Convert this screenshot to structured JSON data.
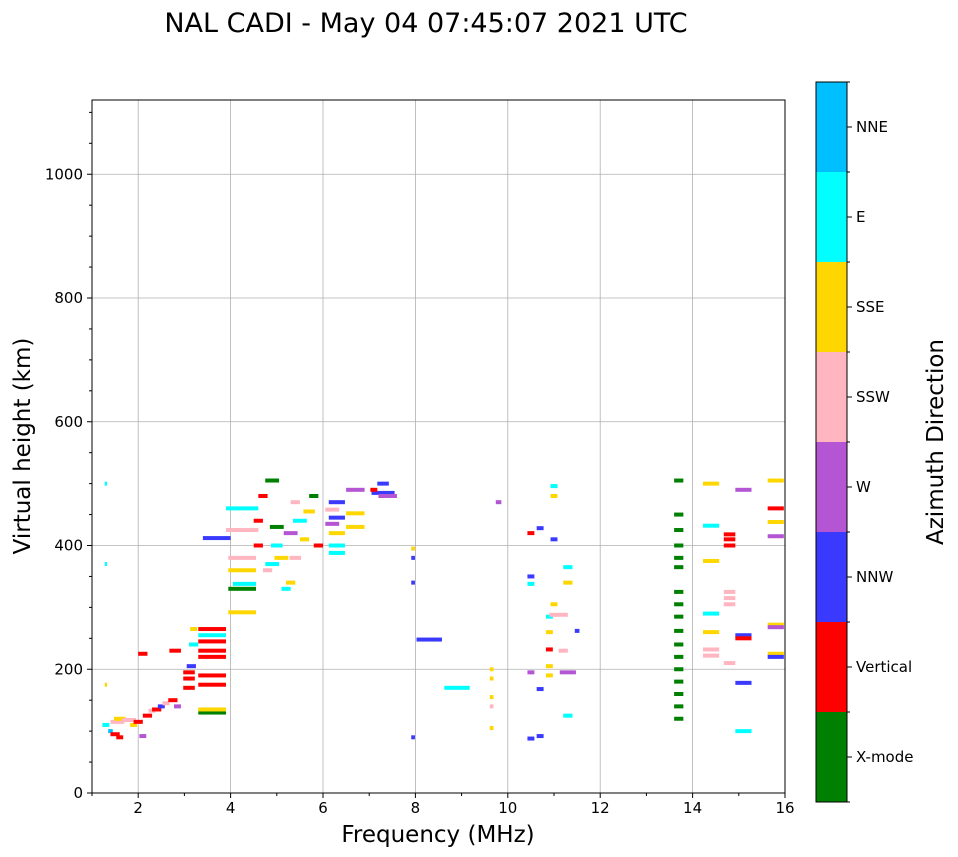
{
  "chart_data": {
    "type": "scatter",
    "title": "NAL CADI - May 04 07:45:07 2021 UTC",
    "xlabel": "Frequency (MHz)",
    "ylabel": "Virtual height (km)",
    "xlim": [
      1,
      16
    ],
    "ylim": [
      0,
      1120
    ],
    "grid": true,
    "x_ticks": [
      {
        "value": 2,
        "label": "2"
      },
      {
        "value": 4,
        "label": "4"
      },
      {
        "value": 6,
        "label": "6"
      },
      {
        "value": 8,
        "label": "8"
      },
      {
        "value": 10,
        "label": "10"
      },
      {
        "value": 12,
        "label": "12"
      },
      {
        "value": 14,
        "label": "14"
      },
      {
        "value": 16,
        "label": "16"
      }
    ],
    "y_ticks": [
      {
        "value": 0,
        "label": "0"
      },
      {
        "value": 200,
        "label": "200"
      },
      {
        "value": 400,
        "label": "400"
      },
      {
        "value": 600,
        "label": "600"
      },
      {
        "value": 800,
        "label": "800"
      },
      {
        "value": 1000,
        "label": "1000"
      }
    ],
    "colorbar": {
      "label": "Azimuth Direction",
      "categories": [
        {
          "name": "X-mode",
          "color": "#008000"
        },
        {
          "name": "Vertical",
          "color": "#ff0000"
        },
        {
          "name": "NNW",
          "color": "#3a3aff"
        },
        {
          "name": "W",
          "color": "#b455d4"
        },
        {
          "name": "SSW",
          "color": "#ffb6c1"
        },
        {
          "name": "SSE",
          "color": "#ffd700"
        },
        {
          "name": "E",
          "color": "#00ffff"
        },
        {
          "name": "NNE",
          "color": "#00bfff"
        }
      ]
    },
    "echoes": [
      {
        "f": 1.3,
        "h": 110,
        "w": 0.15,
        "dir": "E"
      },
      {
        "f": 1.4,
        "h": 100,
        "w": 0.1,
        "dir": "NNE"
      },
      {
        "f": 1.5,
        "h": 95,
        "w": 0.2,
        "dir": "Vertical"
      },
      {
        "f": 1.55,
        "h": 115,
        "w": 0.3,
        "dir": "SSW"
      },
      {
        "f": 1.6,
        "h": 120,
        "w": 0.25,
        "dir": "SSE"
      },
      {
        "f": 1.8,
        "h": 118,
        "w": 0.3,
        "dir": "SSW"
      },
      {
        "f": 1.9,
        "h": 110,
        "w": 0.15,
        "dir": "SSE"
      },
      {
        "f": 2.0,
        "h": 115,
        "w": 0.2,
        "dir": "Vertical"
      },
      {
        "f": 2.2,
        "h": 125,
        "w": 0.2,
        "dir": "Vertical"
      },
      {
        "f": 2.3,
        "h": 133,
        "w": 0.15,
        "dir": "SSW"
      },
      {
        "f": 2.4,
        "h": 135,
        "w": 0.2,
        "dir": "Vertical"
      },
      {
        "f": 2.5,
        "h": 140,
        "w": 0.15,
        "dir": "NNW"
      },
      {
        "f": 2.6,
        "h": 145,
        "w": 0.15,
        "dir": "SSW"
      },
      {
        "f": 2.75,
        "h": 150,
        "w": 0.2,
        "dir": "Vertical"
      },
      {
        "f": 2.85,
        "h": 140,
        "w": 0.15,
        "dir": "W"
      },
      {
        "f": 2.1,
        "h": 225,
        "w": 0.2,
        "dir": "Vertical"
      },
      {
        "f": 2.8,
        "h": 230,
        "w": 0.25,
        "dir": "Vertical"
      },
      {
        "f": 2.1,
        "h": 92,
        "w": 0.15,
        "dir": "W"
      },
      {
        "f": 1.6,
        "h": 90,
        "w": 0.15,
        "dir": "Vertical"
      },
      {
        "f": 3.1,
        "h": 170,
        "w": 0.25,
        "dir": "Vertical"
      },
      {
        "f": 3.1,
        "h": 185,
        "w": 0.25,
        "dir": "Vertical"
      },
      {
        "f": 3.1,
        "h": 195,
        "w": 0.25,
        "dir": "Vertical"
      },
      {
        "f": 3.15,
        "h": 205,
        "w": 0.2,
        "dir": "NNW"
      },
      {
        "f": 3.2,
        "h": 240,
        "w": 0.2,
        "dir": "E"
      },
      {
        "f": 3.2,
        "h": 265,
        "w": 0.15,
        "dir": "SSE"
      },
      {
        "f": 3.6,
        "h": 175,
        "w": 0.6,
        "dir": "Vertical"
      },
      {
        "f": 3.6,
        "h": 190,
        "w": 0.6,
        "dir": "Vertical"
      },
      {
        "f": 3.6,
        "h": 220,
        "w": 0.6,
        "dir": "Vertical"
      },
      {
        "f": 3.6,
        "h": 230,
        "w": 0.6,
        "dir": "Vertical"
      },
      {
        "f": 3.6,
        "h": 245,
        "w": 0.6,
        "dir": "Vertical"
      },
      {
        "f": 3.6,
        "h": 255,
        "w": 0.6,
        "dir": "E"
      },
      {
        "f": 3.6,
        "h": 265,
        "w": 0.6,
        "dir": "Vertical"
      },
      {
        "f": 3.6,
        "h": 130,
        "w": 0.6,
        "dir": "X-mode"
      },
      {
        "f": 3.6,
        "h": 135,
        "w": 0.6,
        "dir": "SSE"
      },
      {
        "f": 3.7,
        "h": 412,
        "w": 0.6,
        "dir": "NNW"
      },
      {
        "f": 4.25,
        "h": 425,
        "w": 0.7,
        "dir": "SSW"
      },
      {
        "f": 4.25,
        "h": 460,
        "w": 0.7,
        "dir": "E"
      },
      {
        "f": 4.25,
        "h": 380,
        "w": 0.6,
        "dir": "SSW"
      },
      {
        "f": 4.25,
        "h": 360,
        "w": 0.6,
        "dir": "SSE"
      },
      {
        "f": 4.25,
        "h": 330,
        "w": 0.6,
        "dir": "X-mode"
      },
      {
        "f": 4.25,
        "h": 292,
        "w": 0.6,
        "dir": "SSE"
      },
      {
        "f": 4.3,
        "h": 338,
        "w": 0.5,
        "dir": "E"
      },
      {
        "f": 4.6,
        "h": 400,
        "w": 0.2,
        "dir": "Vertical"
      },
      {
        "f": 4.6,
        "h": 440,
        "w": 0.2,
        "dir": "Vertical"
      },
      {
        "f": 4.7,
        "h": 480,
        "w": 0.2,
        "dir": "Vertical"
      },
      {
        "f": 4.9,
        "h": 505,
        "w": 0.3,
        "dir": "X-mode"
      },
      {
        "f": 4.9,
        "h": 370,
        "w": 0.3,
        "dir": "E"
      },
      {
        "f": 5.1,
        "h": 380,
        "w": 0.3,
        "dir": "SSE"
      },
      {
        "f": 5.0,
        "h": 400,
        "w": 0.25,
        "dir": "E"
      },
      {
        "f": 5.2,
        "h": 330,
        "w": 0.2,
        "dir": "E"
      },
      {
        "f": 5.3,
        "h": 340,
        "w": 0.2,
        "dir": "SSE"
      },
      {
        "f": 5.3,
        "h": 420,
        "w": 0.3,
        "dir": "W"
      },
      {
        "f": 5.4,
        "h": 470,
        "w": 0.2,
        "dir": "SSW"
      },
      {
        "f": 5.5,
        "h": 440,
        "w": 0.3,
        "dir": "E"
      },
      {
        "f": 5.7,
        "h": 455,
        "w": 0.25,
        "dir": "SSE"
      },
      {
        "f": 5.8,
        "h": 480,
        "w": 0.2,
        "dir": "X-mode"
      },
      {
        "f": 5.6,
        "h": 410,
        "w": 0.2,
        "dir": "SSE"
      },
      {
        "f": 5.9,
        "h": 400,
        "w": 0.2,
        "dir": "Vertical"
      },
      {
        "f": 5.0,
        "h": 430,
        "w": 0.3,
        "dir": "X-mode"
      },
      {
        "f": 4.8,
        "h": 360,
        "w": 0.2,
        "dir": "SSW"
      },
      {
        "f": 5.4,
        "h": 380,
        "w": 0.25,
        "dir": "SSW"
      },
      {
        "f": 6.3,
        "h": 470,
        "w": 0.35,
        "dir": "NNW"
      },
      {
        "f": 6.3,
        "h": 445,
        "w": 0.35,
        "dir": "NNW"
      },
      {
        "f": 6.3,
        "h": 420,
        "w": 0.35,
        "dir": "SSE"
      },
      {
        "f": 6.3,
        "h": 400,
        "w": 0.35,
        "dir": "E"
      },
      {
        "f": 6.3,
        "h": 388,
        "w": 0.35,
        "dir": "E"
      },
      {
        "f": 6.7,
        "h": 490,
        "w": 0.4,
        "dir": "W"
      },
      {
        "f": 6.7,
        "h": 452,
        "w": 0.4,
        "dir": "SSE"
      },
      {
        "f": 6.7,
        "h": 430,
        "w": 0.4,
        "dir": "SSE"
      },
      {
        "f": 6.2,
        "h": 435,
        "w": 0.3,
        "dir": "W"
      },
      {
        "f": 6.2,
        "h": 458,
        "w": 0.3,
        "dir": "SSW"
      },
      {
        "f": 7.3,
        "h": 500,
        "w": 0.25,
        "dir": "NNW"
      },
      {
        "f": 7.3,
        "h": 485,
        "w": 0.5,
        "dir": "NNW"
      },
      {
        "f": 7.4,
        "h": 480,
        "w": 0.4,
        "dir": "W"
      },
      {
        "f": 7.1,
        "h": 490,
        "w": 0.15,
        "dir": "Vertical"
      },
      {
        "f": 7.95,
        "h": 395,
        "w": 0.08,
        "dir": "SSE"
      },
      {
        "f": 7.95,
        "h": 380,
        "w": 0.08,
        "dir": "NNW"
      },
      {
        "f": 7.95,
        "h": 340,
        "w": 0.08,
        "dir": "NNW"
      },
      {
        "f": 7.95,
        "h": 90,
        "w": 0.08,
        "dir": "NNW"
      },
      {
        "f": 8.3,
        "h": 248,
        "w": 0.55,
        "dir": "NNW"
      },
      {
        "f": 8.9,
        "h": 170,
        "w": 0.55,
        "dir": "E"
      },
      {
        "f": 9.8,
        "h": 470,
        "w": 0.12,
        "dir": "W"
      },
      {
        "f": 9.65,
        "h": 200,
        "w": 0.08,
        "dir": "SSE"
      },
      {
        "f": 9.65,
        "h": 185,
        "w": 0.08,
        "dir": "SSE"
      },
      {
        "f": 9.65,
        "h": 140,
        "w": 0.08,
        "dir": "SSW"
      },
      {
        "f": 9.65,
        "h": 155,
        "w": 0.08,
        "dir": "SSE"
      },
      {
        "f": 9.65,
        "h": 105,
        "w": 0.08,
        "dir": "SSE"
      },
      {
        "f": 10.5,
        "h": 420,
        "w": 0.15,
        "dir": "Vertical"
      },
      {
        "f": 10.7,
        "h": 428,
        "w": 0.15,
        "dir": "NNW"
      },
      {
        "f": 10.5,
        "h": 350,
        "w": 0.15,
        "dir": "NNW"
      },
      {
        "f": 10.5,
        "h": 338,
        "w": 0.15,
        "dir": "E"
      },
      {
        "f": 10.9,
        "h": 285,
        "w": 0.15,
        "dir": "E"
      },
      {
        "f": 10.9,
        "h": 260,
        "w": 0.15,
        "dir": "SSE"
      },
      {
        "f": 10.9,
        "h": 232,
        "w": 0.15,
        "dir": "Vertical"
      },
      {
        "f": 10.9,
        "h": 205,
        "w": 0.15,
        "dir": "SSE"
      },
      {
        "f": 10.9,
        "h": 190,
        "w": 0.15,
        "dir": "SSE"
      },
      {
        "f": 10.7,
        "h": 168,
        "w": 0.15,
        "dir": "NNW"
      },
      {
        "f": 10.5,
        "h": 195,
        "w": 0.15,
        "dir": "W"
      },
      {
        "f": 10.7,
        "h": 92,
        "w": 0.15,
        "dir": "NNW"
      },
      {
        "f": 10.5,
        "h": 88,
        "w": 0.15,
        "dir": "NNW"
      },
      {
        "f": 11.0,
        "h": 480,
        "w": 0.15,
        "dir": "SSE"
      },
      {
        "f": 11.0,
        "h": 496,
        "w": 0.15,
        "dir": "E"
      },
      {
        "f": 11.0,
        "h": 410,
        "w": 0.15,
        "dir": "NNW"
      },
      {
        "f": 11.0,
        "h": 305,
        "w": 0.15,
        "dir": "SSE"
      },
      {
        "f": 11.3,
        "h": 365,
        "w": 0.2,
        "dir": "E"
      },
      {
        "f": 11.3,
        "h": 340,
        "w": 0.2,
        "dir": "SSE"
      },
      {
        "f": 11.1,
        "h": 288,
        "w": 0.4,
        "dir": "SSW"
      },
      {
        "f": 11.3,
        "h": 195,
        "w": 0.35,
        "dir": "W"
      },
      {
        "f": 11.5,
        "h": 262,
        "w": 0.1,
        "dir": "NNW"
      },
      {
        "f": 11.3,
        "h": 125,
        "w": 0.2,
        "dir": "E"
      },
      {
        "f": 11.2,
        "h": 230,
        "w": 0.2,
        "dir": "SSW"
      },
      {
        "f": 13.7,
        "h": 505,
        "w": 0.2,
        "dir": "X-mode"
      },
      {
        "f": 13.7,
        "h": 450,
        "w": 0.2,
        "dir": "X-mode"
      },
      {
        "f": 13.7,
        "h": 425,
        "w": 0.2,
        "dir": "X-mode"
      },
      {
        "f": 13.7,
        "h": 400,
        "w": 0.2,
        "dir": "X-mode"
      },
      {
        "f": 13.7,
        "h": 380,
        "w": 0.2,
        "dir": "X-mode"
      },
      {
        "f": 13.7,
        "h": 365,
        "w": 0.2,
        "dir": "X-mode"
      },
      {
        "f": 13.7,
        "h": 325,
        "w": 0.2,
        "dir": "X-mode"
      },
      {
        "f": 13.7,
        "h": 305,
        "w": 0.2,
        "dir": "X-mode"
      },
      {
        "f": 13.7,
        "h": 285,
        "w": 0.2,
        "dir": "X-mode"
      },
      {
        "f": 13.7,
        "h": 262,
        "w": 0.2,
        "dir": "X-mode"
      },
      {
        "f": 13.7,
        "h": 240,
        "w": 0.2,
        "dir": "X-mode"
      },
      {
        "f": 13.7,
        "h": 220,
        "w": 0.2,
        "dir": "X-mode"
      },
      {
        "f": 13.7,
        "h": 200,
        "w": 0.2,
        "dir": "X-mode"
      },
      {
        "f": 13.7,
        "h": 180,
        "w": 0.2,
        "dir": "X-mode"
      },
      {
        "f": 13.7,
        "h": 160,
        "w": 0.2,
        "dir": "X-mode"
      },
      {
        "f": 13.7,
        "h": 140,
        "w": 0.2,
        "dir": "X-mode"
      },
      {
        "f": 13.7,
        "h": 120,
        "w": 0.2,
        "dir": "X-mode"
      },
      {
        "f": 14.4,
        "h": 500,
        "w": 0.35,
        "dir": "SSE"
      },
      {
        "f": 14.4,
        "h": 432,
        "w": 0.35,
        "dir": "E"
      },
      {
        "f": 14.4,
        "h": 375,
        "w": 0.35,
        "dir": "SSE"
      },
      {
        "f": 14.4,
        "h": 290,
        "w": 0.35,
        "dir": "E"
      },
      {
        "f": 14.4,
        "h": 260,
        "w": 0.35,
        "dir": "SSE"
      },
      {
        "f": 14.4,
        "h": 232,
        "w": 0.35,
        "dir": "SSW"
      },
      {
        "f": 14.4,
        "h": 222,
        "w": 0.35,
        "dir": "SSW"
      },
      {
        "f": 14.8,
        "h": 418,
        "w": 0.25,
        "dir": "Vertical"
      },
      {
        "f": 14.8,
        "h": 410,
        "w": 0.25,
        "dir": "Vertical"
      },
      {
        "f": 14.8,
        "h": 400,
        "w": 0.25,
        "dir": "Vertical"
      },
      {
        "f": 14.8,
        "h": 325,
        "w": 0.25,
        "dir": "SSW"
      },
      {
        "f": 14.8,
        "h": 315,
        "w": 0.25,
        "dir": "SSW"
      },
      {
        "f": 14.8,
        "h": 305,
        "w": 0.25,
        "dir": "SSW"
      },
      {
        "f": 14.8,
        "h": 210,
        "w": 0.25,
        "dir": "SSW"
      },
      {
        "f": 15.1,
        "h": 490,
        "w": 0.35,
        "dir": "W"
      },
      {
        "f": 15.1,
        "h": 255,
        "w": 0.35,
        "dir": "NNW"
      },
      {
        "f": 15.1,
        "h": 250,
        "w": 0.35,
        "dir": "Vertical"
      },
      {
        "f": 15.1,
        "h": 178,
        "w": 0.35,
        "dir": "NNW"
      },
      {
        "f": 15.1,
        "h": 100,
        "w": 0.35,
        "dir": "E"
      },
      {
        "f": 15.8,
        "h": 505,
        "w": 0.35,
        "dir": "SSE"
      },
      {
        "f": 15.8,
        "h": 460,
        "w": 0.35,
        "dir": "Vertical"
      },
      {
        "f": 15.8,
        "h": 438,
        "w": 0.35,
        "dir": "SSE"
      },
      {
        "f": 15.8,
        "h": 415,
        "w": 0.35,
        "dir": "W"
      },
      {
        "f": 15.8,
        "h": 272,
        "w": 0.35,
        "dir": "SSE"
      },
      {
        "f": 15.8,
        "h": 268,
        "w": 0.35,
        "dir": "W"
      },
      {
        "f": 15.8,
        "h": 225,
        "w": 0.35,
        "dir": "SSE"
      },
      {
        "f": 15.8,
        "h": 220,
        "w": 0.35,
        "dir": "NNW"
      },
      {
        "f": 1.3,
        "h": 500,
        "w": 0.05,
        "dir": "E"
      },
      {
        "f": 1.3,
        "h": 370,
        "w": 0.05,
        "dir": "E"
      },
      {
        "f": 1.3,
        "h": 175,
        "w": 0.05,
        "dir": "SSE"
      }
    ]
  }
}
